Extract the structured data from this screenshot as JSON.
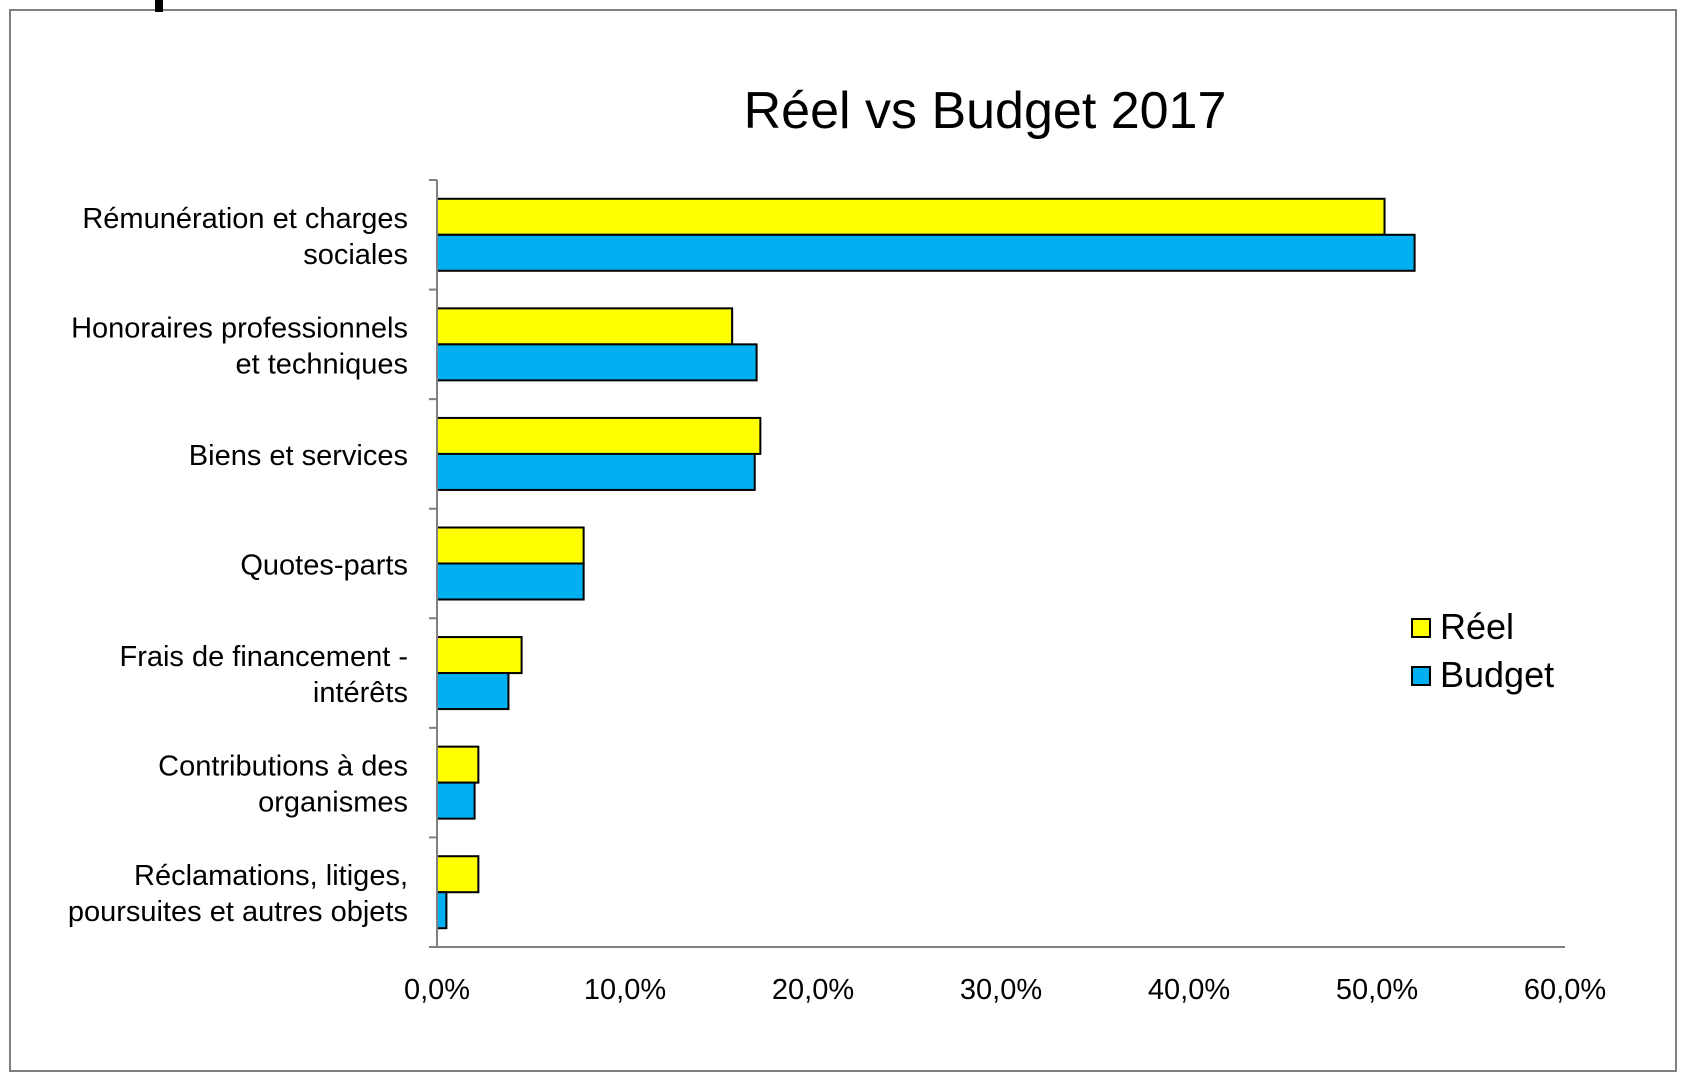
{
  "colors": {
    "reel": "#ffff00",
    "budget": "#00b0f0",
    "bar_stroke": "#000000",
    "axis": "#808080",
    "frame": "#808080"
  },
  "chart_data": {
    "type": "bar",
    "orientation": "horizontal",
    "title": "Réel vs Budget 2017",
    "xlabel": "",
    "ylabel": "",
    "xlim": [
      0,
      60
    ],
    "xticks": [
      "0,0%",
      "10,0%",
      "20,0%",
      "30,0%",
      "40,0%",
      "50,0%",
      "60,0%"
    ],
    "grid": false,
    "legend_position": "right",
    "categories": [
      [
        "Rémunération et charges",
        "sociales"
      ],
      [
        "Honoraires professionnels",
        "et techniques"
      ],
      [
        "Biens et services"
      ],
      [
        "Quotes-parts"
      ],
      [
        "Frais de financement -",
        "intérêts"
      ],
      [
        "Contributions à des",
        "organismes"
      ],
      [
        "Réclamations, litiges,",
        "poursuites et autres objets"
      ]
    ],
    "series": [
      {
        "name": "Réel",
        "values": [
          50.4,
          15.7,
          17.2,
          7.8,
          4.5,
          2.2,
          2.2
        ]
      },
      {
        "name": "Budget",
        "values": [
          52.0,
          17.0,
          16.9,
          7.8,
          3.8,
          2.0,
          0.5
        ]
      }
    ]
  }
}
